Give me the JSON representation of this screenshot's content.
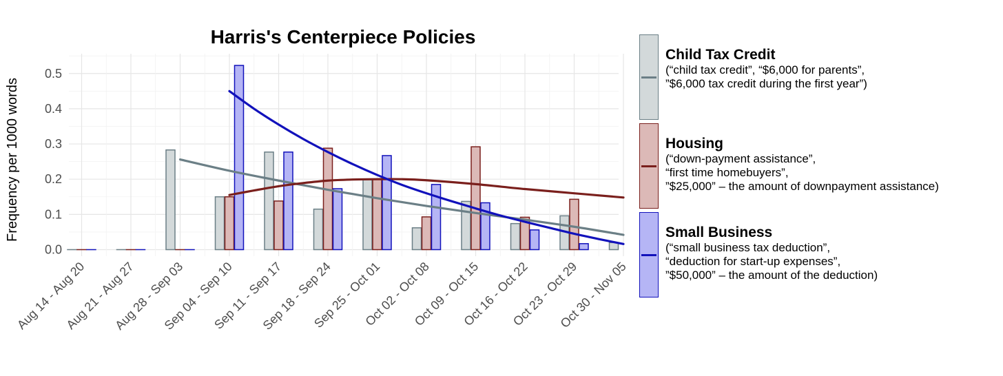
{
  "chart_data": {
    "type": "bar",
    "title": "Harris's Centerpiece Policies",
    "xlabel": "",
    "ylabel": "Frequency per 1000 words",
    "ylim": [
      0,
      0.55
    ],
    "yticks": [
      0.0,
      0.1,
      0.2,
      0.3,
      0.4,
      0.5
    ],
    "ytick_labels": [
      "0.0",
      "0.1",
      "0.2",
      "0.3",
      "0.4",
      "0.5"
    ],
    "grid": true,
    "legend_position": "right",
    "categories": [
      "Aug 14 - Aug 20",
      "Aug 21 - Aug 27",
      "Aug 28 - Sep 03",
      "Sep 04 - Sep 10",
      "Sep 11 - Sep 17",
      "Sep 18 - Sep 24",
      "Sep 25 - Oct 01",
      "Oct 02 - Oct 08",
      "Oct 09 - Oct 15",
      "Oct 16 - Oct 22",
      "Oct 23 - Oct 29",
      "Oct 30 - Nov 05"
    ],
    "series": [
      {
        "name": "Child Tax Credit",
        "description": "(“child tax credit”, “$6,000 for parents”,\n”$6,000 tax credit during the first year”)",
        "values": [
          0,
          0,
          0.283,
          0.15,
          0.277,
          0.115,
          0.2,
          0.062,
          0.137,
          0.074,
          0.096,
          0.02
        ],
        "fill": "#d3d9da",
        "stroke": "#6b7f86",
        "trend": [
          [
            2,
            0.256
          ],
          [
            3,
            0.224
          ],
          [
            4,
            0.196
          ],
          [
            5,
            0.17
          ],
          [
            6,
            0.146
          ],
          [
            7,
            0.124
          ],
          [
            8,
            0.104
          ],
          [
            9,
            0.085
          ],
          [
            10,
            0.065
          ],
          [
            11,
            0.042
          ]
        ]
      },
      {
        "name": "Housing",
        "description": "(“down-payment assistance”,\n“first time homebuyers”,\n”$25,000” – the amount of downpayment assistance)",
        "values": [
          0,
          0,
          0,
          0.15,
          0.138,
          0.288,
          0.2,
          0.093,
          0.292,
          0.092,
          0.143,
          null
        ],
        "fill": "#dcb9b7",
        "stroke": "#7a1f1c",
        "trend": [
          [
            3,
            0.155
          ],
          [
            3.5,
            0.168
          ],
          [
            4,
            0.18
          ],
          [
            4.5,
            0.189
          ],
          [
            5,
            0.196
          ],
          [
            5.5,
            0.199
          ],
          [
            6,
            0.2
          ],
          [
            6.5,
            0.2
          ],
          [
            7,
            0.197
          ],
          [
            8,
            0.186
          ],
          [
            9,
            0.172
          ],
          [
            10,
            0.16
          ],
          [
            11,
            0.148
          ]
        ]
      },
      {
        "name": "Small Business",
        "description": "(“small business tax deduction”,\n“deduction for start-up expenses”,\n”$50,000” – the amount of the deduction)",
        "values": [
          0,
          0,
          0,
          0.523,
          0.277,
          0.173,
          0.267,
          0.185,
          0.133,
          0.056,
          0.017,
          null
        ],
        "fill": "#b5b5f5",
        "stroke": "#1111bb",
        "trend": [
          [
            3,
            0.45
          ],
          [
            3.5,
            0.4
          ],
          [
            4,
            0.355
          ],
          [
            4.5,
            0.314
          ],
          [
            5,
            0.277
          ],
          [
            5.5,
            0.243
          ],
          [
            6,
            0.212
          ],
          [
            6.5,
            0.184
          ],
          [
            7,
            0.16
          ],
          [
            7.5,
            0.138
          ],
          [
            8,
            0.117
          ],
          [
            8.5,
            0.097
          ],
          [
            9,
            0.079
          ],
          [
            9.5,
            0.062
          ],
          [
            10,
            0.045
          ],
          [
            10.5,
            0.03
          ],
          [
            11,
            0.016
          ]
        ]
      }
    ]
  }
}
